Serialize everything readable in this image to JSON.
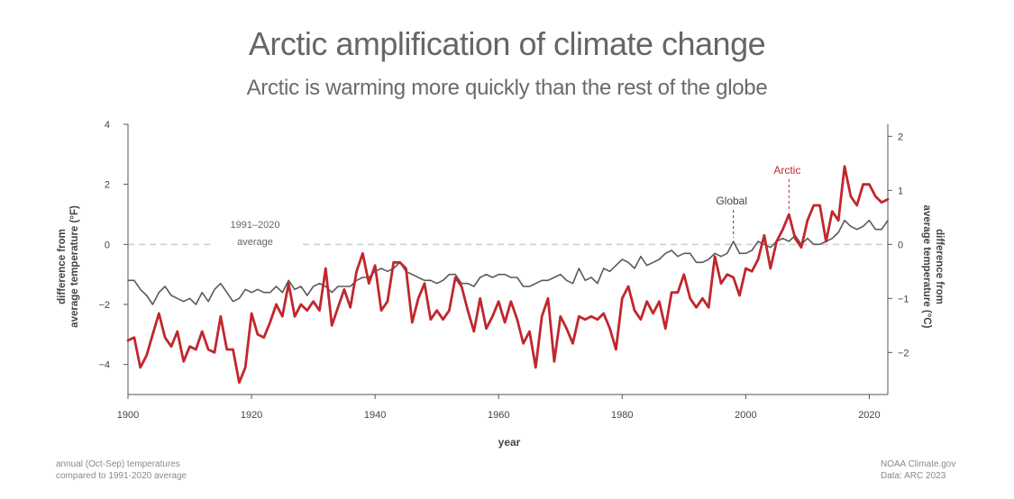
{
  "title": "Arctic amplification of climate change",
  "subtitle": "Arctic is warming more quickly than the rest of the globe",
  "footnote_left": [
    "annual (Oct-Sep) temperatures",
    "compared to 1991-2020 average"
  ],
  "footnote_right": [
    "NOAA Climate.gov",
    "Data: ARC 2023"
  ],
  "colors": {
    "arctic": "#c0272d",
    "global": "#5a5a5a",
    "axis": "#555555",
    "baseline": "#cccccc"
  },
  "chart_data": {
    "type": "line",
    "xlabel": "year",
    "ylabel_left": [
      "difference from",
      "average temperature (°F)"
    ],
    "ylabel_right": [
      "difference from",
      "average temperature (°C)"
    ],
    "x_ticks": [
      1900,
      1920,
      1940,
      1960,
      1980,
      2000,
      2020
    ],
    "xlim": [
      1900,
      2023
    ],
    "y_ticks_left": [
      -4,
      -2,
      0,
      2,
      4
    ],
    "ylim_left": [
      -5,
      4
    ],
    "y_ticks_right": [
      -2,
      -1,
      0,
      1,
      2
    ],
    "baseline_label": [
      "1991–2020",
      "average"
    ],
    "annotations": [
      {
        "text": "Global",
        "series": "Global",
        "x": 1998
      },
      {
        "text": "Arctic",
        "series": "Arctic",
        "x": 2007
      }
    ],
    "x": [
      1900,
      1901,
      1902,
      1903,
      1904,
      1905,
      1906,
      1907,
      1908,
      1909,
      1910,
      1911,
      1912,
      1913,
      1914,
      1915,
      1916,
      1917,
      1918,
      1919,
      1920,
      1921,
      1922,
      1923,
      1924,
      1925,
      1926,
      1927,
      1928,
      1929,
      1930,
      1931,
      1932,
      1933,
      1934,
      1935,
      1936,
      1937,
      1938,
      1939,
      1940,
      1941,
      1942,
      1943,
      1944,
      1945,
      1946,
      1947,
      1948,
      1949,
      1950,
      1951,
      1952,
      1953,
      1954,
      1955,
      1956,
      1957,
      1958,
      1959,
      1960,
      1961,
      1962,
      1963,
      1964,
      1965,
      1966,
      1967,
      1968,
      1969,
      1970,
      1971,
      1972,
      1973,
      1974,
      1975,
      1976,
      1977,
      1978,
      1979,
      1980,
      1981,
      1982,
      1983,
      1984,
      1985,
      1986,
      1987,
      1988,
      1989,
      1990,
      1991,
      1992,
      1993,
      1994,
      1995,
      1996,
      1997,
      1998,
      1999,
      2000,
      2001,
      2002,
      2003,
      2004,
      2005,
      2006,
      2007,
      2008,
      2009,
      2010,
      2011,
      2012,
      2013,
      2014,
      2015,
      2016,
      2017,
      2018,
      2019,
      2020,
      2021,
      2022,
      2023
    ],
    "series": [
      {
        "name": "Arctic",
        "unit": "°F",
        "values": [
          -3.2,
          -3.1,
          -4.1,
          -3.7,
          -3.0,
          -2.3,
          -3.1,
          -3.4,
          -2.9,
          -3.9,
          -3.4,
          -3.5,
          -2.9,
          -3.5,
          -3.6,
          -2.4,
          -3.5,
          -3.5,
          -4.6,
          -4.1,
          -2.3,
          -3.0,
          -3.1,
          -2.6,
          -2.0,
          -2.4,
          -1.3,
          -2.4,
          -2.0,
          -2.2,
          -1.9,
          -2.2,
          -0.8,
          -2.7,
          -2.1,
          -1.5,
          -2.1,
          -0.9,
          -0.3,
          -1.3,
          -0.7,
          -2.2,
          -1.9,
          -0.6,
          -0.6,
          -0.8,
          -2.6,
          -1.8,
          -1.3,
          -2.5,
          -2.2,
          -2.5,
          -2.2,
          -1.1,
          -1.4,
          -2.2,
          -2.9,
          -1.8,
          -2.8,
          -2.4,
          -1.9,
          -2.6,
          -1.9,
          -2.5,
          -3.3,
          -2.9,
          -4.1,
          -2.4,
          -1.8,
          -3.9,
          -2.4,
          -2.8,
          -3.3,
          -2.4,
          -2.5,
          -2.4,
          -2.5,
          -2.3,
          -2.8,
          -3.5,
          -1.8,
          -1.4,
          -2.2,
          -2.5,
          -1.9,
          -2.3,
          -1.9,
          -2.8,
          -1.6,
          -1.6,
          -1.0,
          -1.8,
          -2.1,
          -1.8,
          -2.1,
          -0.4,
          -1.3,
          -1.0,
          -1.1,
          -1.7,
          -0.8,
          -0.9,
          -0.5,
          0.3,
          -0.8,
          0.1,
          0.5,
          1.0,
          0.2,
          -0.1,
          0.8,
          1.3,
          1.3,
          0.1,
          1.1,
          0.8,
          2.6,
          1.6,
          1.3,
          2.0,
          2.0,
          1.6,
          1.4,
          1.5
        ]
      },
      {
        "name": "Global",
        "unit": "°F",
        "values": [
          -1.2,
          -1.2,
          -1.5,
          -1.7,
          -2.0,
          -1.6,
          -1.4,
          -1.7,
          -1.8,
          -1.9,
          -1.8,
          -2.0,
          -1.6,
          -1.9,
          -1.5,
          -1.3,
          -1.6,
          -1.9,
          -1.8,
          -1.5,
          -1.6,
          -1.5,
          -1.6,
          -1.6,
          -1.4,
          -1.6,
          -1.2,
          -1.5,
          -1.4,
          -1.7,
          -1.4,
          -1.3,
          -1.4,
          -1.6,
          -1.4,
          -1.4,
          -1.4,
          -1.2,
          -1.1,
          -1.1,
          -0.9,
          -0.8,
          -0.9,
          -0.8,
          -0.6,
          -0.9,
          -1.0,
          -1.1,
          -1.2,
          -1.2,
          -1.3,
          -1.2,
          -1.0,
          -1.0,
          -1.3,
          -1.3,
          -1.4,
          -1.1,
          -1.0,
          -1.1,
          -1.0,
          -1.0,
          -1.1,
          -1.1,
          -1.4,
          -1.4,
          -1.3,
          -1.2,
          -1.2,
          -1.1,
          -1.0,
          -1.2,
          -1.3,
          -0.8,
          -1.2,
          -1.1,
          -1.3,
          -0.8,
          -0.9,
          -0.7,
          -0.5,
          -0.6,
          -0.8,
          -0.4,
          -0.7,
          -0.6,
          -0.5,
          -0.3,
          -0.2,
          -0.4,
          -0.3,
          -0.3,
          -0.6,
          -0.6,
          -0.5,
          -0.3,
          -0.4,
          -0.3,
          0.1,
          -0.3,
          -0.3,
          -0.2,
          0.1,
          0.0,
          -0.1,
          0.1,
          0.2,
          0.1,
          0.3,
          0.0,
          0.2,
          0.0,
          0.0,
          0.1,
          0.2,
          0.4,
          0.8,
          0.6,
          0.5,
          0.6,
          0.8,
          0.5,
          0.5,
          0.8
        ]
      }
    ]
  }
}
